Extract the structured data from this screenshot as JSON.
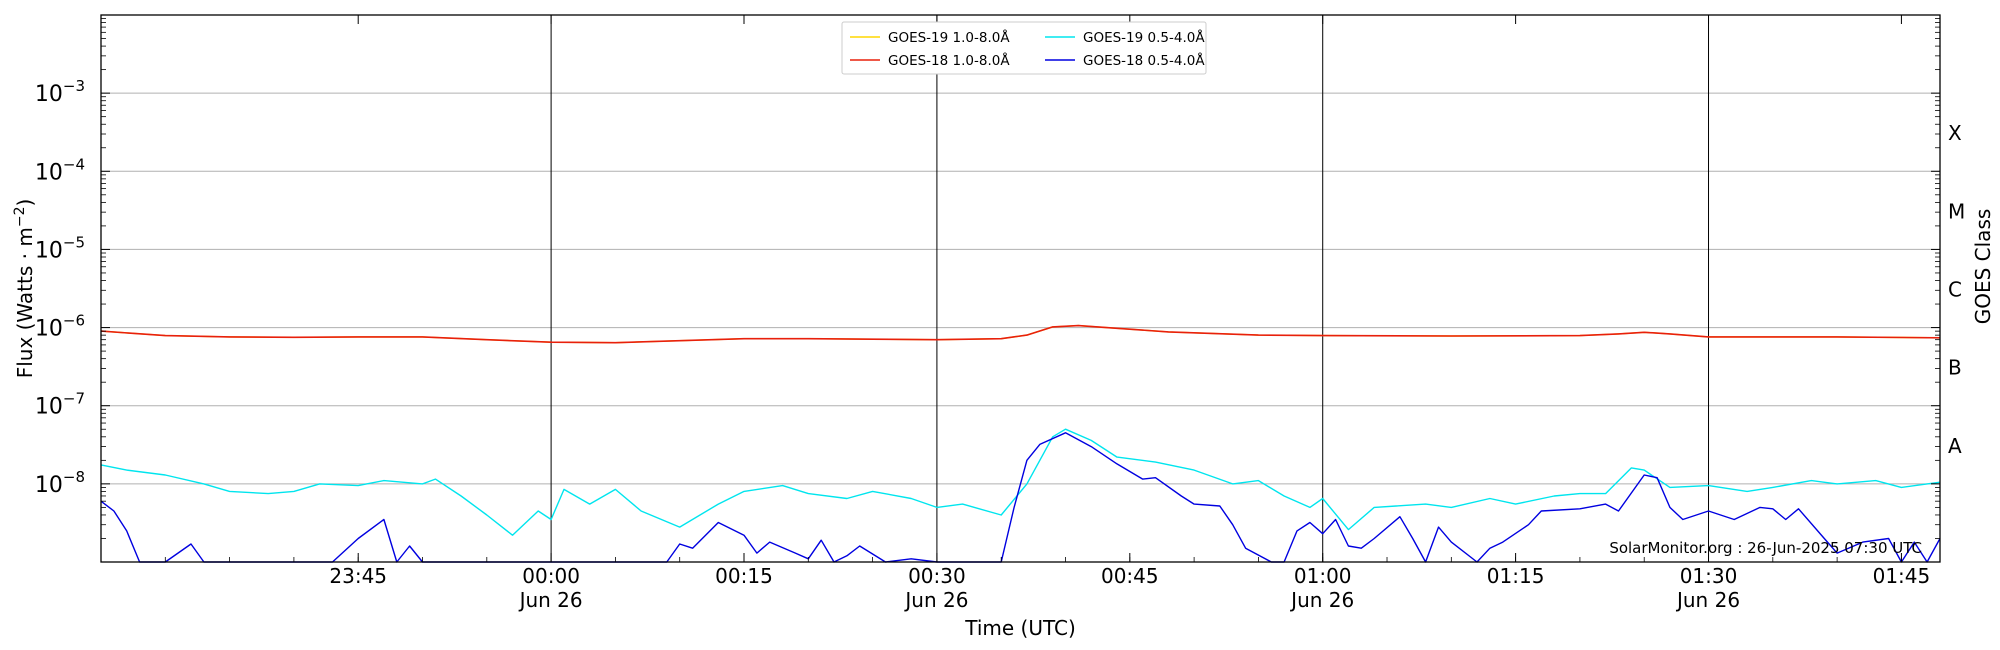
{
  "chart_data": {
    "type": "line",
    "xlabel": "Time (UTC)",
    "ylabel_main": "Flux (Watts",
    "ylabel_unit": "m",
    "ylabel_exp": "−2",
    "right_label": "GOES Class",
    "ylim": [
      1e-09,
      0.01
    ],
    "y_scale": "log",
    "x_start": "2025-06-25T23:25",
    "x_end": "2025-06-26T01:48",
    "grid": "horizontal",
    "legend": "top-center",
    "ytick_base": "10",
    "yticks": [
      {
        "exp": "−3",
        "value": 0.001
      },
      {
        "exp": "−4",
        "value": 0.0001
      },
      {
        "exp": "−5",
        "value": 1e-05
      },
      {
        "exp": "−6",
        "value": 1e-06
      },
      {
        "exp": "−7",
        "value": 1e-07
      },
      {
        "exp": "−8",
        "value": 1e-08
      }
    ],
    "xticks": [
      {
        "time": "2025-06-25T23:45",
        "label": "23:45",
        "sub": ""
      },
      {
        "time": "2025-06-26T00:00",
        "label": "00:00",
        "sub": "Jun 26"
      },
      {
        "time": "2025-06-26T00:15",
        "label": "00:15",
        "sub": ""
      },
      {
        "time": "2025-06-26T00:30",
        "label": "00:30",
        "sub": "Jun 26"
      },
      {
        "time": "2025-06-26T00:45",
        "label": "00:45",
        "sub": ""
      },
      {
        "time": "2025-06-26T01:00",
        "label": "01:00",
        "sub": "Jun 26"
      },
      {
        "time": "2025-06-26T01:15",
        "label": "01:15",
        "sub": ""
      },
      {
        "time": "2025-06-26T01:30",
        "label": "01:30",
        "sub": "Jun 26"
      },
      {
        "time": "2025-06-26T01:45",
        "label": "01:45",
        "sub": ""
      }
    ],
    "vlines": [
      "2025-06-26T00:00",
      "2025-06-26T00:30",
      "2025-06-26T01:00",
      "2025-06-26T01:30"
    ],
    "goes_classes": [
      {
        "label": "X",
        "value": 0.000316
      },
      {
        "label": "M",
        "value": 3.16e-05
      },
      {
        "label": "C",
        "value": 3.16e-06
      },
      {
        "label": "B",
        "value": 3.16e-07
      },
      {
        "label": "A",
        "value": 3.16e-08
      }
    ],
    "annotation": "SolarMonitor.org : 26-Jun-2025 07:30 UTC",
    "series": [
      {
        "name": "GOES-19 1.0-8.0Å",
        "color": "#ffd700",
        "visible": true,
        "points": [
          [
            "2025-06-25T23:25",
            9e-07
          ],
          [
            "2025-06-25T23:30",
            7.9e-07
          ],
          [
            "2025-06-25T23:35",
            7.6e-07
          ],
          [
            "2025-06-25T23:40",
            7.5e-07
          ],
          [
            "2025-06-25T23:45",
            7.6e-07
          ],
          [
            "2025-06-25T23:50",
            7.6e-07
          ],
          [
            "2025-06-25T23:55",
            7e-07
          ],
          [
            "2025-06-26T00:00",
            6.5e-07
          ],
          [
            "2025-06-26T00:05",
            6.4e-07
          ],
          [
            "2025-06-26T00:10",
            6.8e-07
          ],
          [
            "2025-06-26T00:15",
            7.2e-07
          ],
          [
            "2025-06-26T00:20",
            7.2e-07
          ],
          [
            "2025-06-26T00:25",
            7.1e-07
          ],
          [
            "2025-06-26T00:30",
            7e-07
          ],
          [
            "2025-06-26T00:35",
            7.2e-07
          ],
          [
            "2025-06-26T00:37",
            8e-07
          ],
          [
            "2025-06-26T00:39",
            1.02e-06
          ],
          [
            "2025-06-26T00:41",
            1.06e-06
          ],
          [
            "2025-06-26T00:44",
            9.8e-07
          ],
          [
            "2025-06-26T00:48",
            8.8e-07
          ],
          [
            "2025-06-26T00:55",
            8e-07
          ],
          [
            "2025-06-26T01:00",
            7.9e-07
          ],
          [
            "2025-06-26T01:10",
            7.8e-07
          ],
          [
            "2025-06-26T01:20",
            7.9e-07
          ],
          [
            "2025-06-26T01:23",
            8.3e-07
          ],
          [
            "2025-06-26T01:25",
            8.7e-07
          ],
          [
            "2025-06-26T01:27",
            8.3e-07
          ],
          [
            "2025-06-26T01:30",
            7.6e-07
          ],
          [
            "2025-06-26T01:40",
            7.6e-07
          ],
          [
            "2025-06-26T01:48",
            7.4e-07
          ]
        ]
      },
      {
        "name": "GOES-18 1.0-8.0Å",
        "color": "#e8200c",
        "visible": true,
        "points": [
          [
            "2025-06-25T23:25",
            9e-07
          ],
          [
            "2025-06-25T23:30",
            7.9e-07
          ],
          [
            "2025-06-25T23:35",
            7.6e-07
          ],
          [
            "2025-06-25T23:40",
            7.5e-07
          ],
          [
            "2025-06-25T23:45",
            7.6e-07
          ],
          [
            "2025-06-25T23:50",
            7.6e-07
          ],
          [
            "2025-06-25T23:55",
            7e-07
          ],
          [
            "2025-06-26T00:00",
            6.5e-07
          ],
          [
            "2025-06-26T00:05",
            6.4e-07
          ],
          [
            "2025-06-26T00:10",
            6.8e-07
          ],
          [
            "2025-06-26T00:15",
            7.2e-07
          ],
          [
            "2025-06-26T00:20",
            7.2e-07
          ],
          [
            "2025-06-26T00:25",
            7.1e-07
          ],
          [
            "2025-06-26T00:30",
            7e-07
          ],
          [
            "2025-06-26T00:35",
            7.2e-07
          ],
          [
            "2025-06-26T00:37",
            8e-07
          ],
          [
            "2025-06-26T00:39",
            1.02e-06
          ],
          [
            "2025-06-26T00:41",
            1.06e-06
          ],
          [
            "2025-06-26T00:44",
            9.8e-07
          ],
          [
            "2025-06-26T00:48",
            8.8e-07
          ],
          [
            "2025-06-26T00:55",
            8e-07
          ],
          [
            "2025-06-26T01:00",
            7.9e-07
          ],
          [
            "2025-06-26T01:10",
            7.8e-07
          ],
          [
            "2025-06-26T01:20",
            7.9e-07
          ],
          [
            "2025-06-26T01:23",
            8.3e-07
          ],
          [
            "2025-06-26T01:25",
            8.7e-07
          ],
          [
            "2025-06-26T01:27",
            8.3e-07
          ],
          [
            "2025-06-26T01:30",
            7.6e-07
          ],
          [
            "2025-06-26T01:40",
            7.6e-07
          ],
          [
            "2025-06-26T01:48",
            7.4e-07
          ]
        ]
      },
      {
        "name": "GOES-19 0.5-4.0Å",
        "color": "#00e5ee",
        "visible": true,
        "points": [
          [
            "2025-06-25T23:25",
            1.75e-08
          ],
          [
            "2025-06-25T23:27",
            1.5e-08
          ],
          [
            "2025-06-25T23:30",
            1.3e-08
          ],
          [
            "2025-06-25T23:33",
            1e-08
          ],
          [
            "2025-06-25T23:35",
            8e-09
          ],
          [
            "2025-06-25T23:38",
            7.5e-09
          ],
          [
            "2025-06-25T23:40",
            8e-09
          ],
          [
            "2025-06-25T23:42",
            1e-08
          ],
          [
            "2025-06-25T23:45",
            9.5e-09
          ],
          [
            "2025-06-25T23:47",
            1.1e-08
          ],
          [
            "2025-06-25T23:50",
            1e-08
          ],
          [
            "2025-06-25T23:51",
            1.15e-08
          ],
          [
            "2025-06-25T23:53",
            7e-09
          ],
          [
            "2025-06-25T23:55",
            4e-09
          ],
          [
            "2025-06-25T23:57",
            2.2e-09
          ],
          [
            "2025-06-25T23:59",
            4.5e-09
          ],
          [
            "2025-06-26T00:00",
            3.5e-09
          ],
          [
            "2025-06-26T00:01",
            8.5e-09
          ],
          [
            "2025-06-26T00:03",
            5.5e-09
          ],
          [
            "2025-06-26T00:05",
            8.5e-09
          ],
          [
            "2025-06-26T00:07",
            4.5e-09
          ],
          [
            "2025-06-26T00:10",
            2.8e-09
          ],
          [
            "2025-06-26T00:13",
            5.5e-09
          ],
          [
            "2025-06-26T00:15",
            8e-09
          ],
          [
            "2025-06-26T00:18",
            9.5e-09
          ],
          [
            "2025-06-26T00:20",
            7.5e-09
          ],
          [
            "2025-06-26T00:23",
            6.5e-09
          ],
          [
            "2025-06-26T00:25",
            8e-09
          ],
          [
            "2025-06-26T00:28",
            6.5e-09
          ],
          [
            "2025-06-26T00:30",
            5e-09
          ],
          [
            "2025-06-26T00:32",
            5.5e-09
          ],
          [
            "2025-06-26T00:35",
            4e-09
          ],
          [
            "2025-06-26T00:37",
            1e-08
          ],
          [
            "2025-06-26T00:39",
            4e-08
          ],
          [
            "2025-06-26T00:40",
            5e-08
          ],
          [
            "2025-06-26T00:42",
            3.6e-08
          ],
          [
            "2025-06-26T00:44",
            2.2e-08
          ],
          [
            "2025-06-26T00:47",
            1.9e-08
          ],
          [
            "2025-06-26T00:50",
            1.5e-08
          ],
          [
            "2025-06-26T00:53",
            1e-08
          ],
          [
            "2025-06-26T00:55",
            1.1e-08
          ],
          [
            "2025-06-26T00:57",
            7e-09
          ],
          [
            "2025-06-26T00:59",
            5e-09
          ],
          [
            "2025-06-26T01:00",
            6.5e-09
          ],
          [
            "2025-06-26T01:02",
            2.6e-09
          ],
          [
            "2025-06-26T01:04",
            5e-09
          ],
          [
            "2025-06-26T01:08",
            5.5e-09
          ],
          [
            "2025-06-26T01:10",
            5e-09
          ],
          [
            "2025-06-26T01:13",
            6.5e-09
          ],
          [
            "2025-06-26T01:15",
            5.5e-09
          ],
          [
            "2025-06-26T01:18",
            7e-09
          ],
          [
            "2025-06-26T01:20",
            7.5e-09
          ],
          [
            "2025-06-26T01:22",
            7.5e-09
          ],
          [
            "2025-06-26T01:24",
            1.6e-08
          ],
          [
            "2025-06-26T01:25",
            1.5e-08
          ],
          [
            "2025-06-26T01:27",
            9e-09
          ],
          [
            "2025-06-26T01:30",
            9.5e-09
          ],
          [
            "2025-06-26T01:33",
            8e-09
          ],
          [
            "2025-06-26T01:35",
            9e-09
          ],
          [
            "2025-06-26T01:38",
            1.1e-08
          ],
          [
            "2025-06-26T01:40",
            1e-08
          ],
          [
            "2025-06-26T01:43",
            1.1e-08
          ],
          [
            "2025-06-26T01:45",
            9e-09
          ],
          [
            "2025-06-26T01:48",
            1.05e-08
          ]
        ]
      },
      {
        "name": "GOES-18 0.5-4.0Å",
        "color": "#0000e0",
        "visible": true,
        "points": [
          [
            "2025-06-25T23:25",
            6e-09
          ],
          [
            "2025-06-25T23:26",
            4.5e-09
          ],
          [
            "2025-06-25T23:27",
            2.5e-09
          ],
          [
            "2025-06-25T23:28",
            1e-09
          ],
          [
            "2025-06-25T23:30",
            1e-09
          ],
          [
            "2025-06-25T23:32",
            1.7e-09
          ],
          [
            "2025-06-25T23:33",
            1e-09
          ],
          [
            "2025-06-25T23:43",
            1e-09
          ],
          [
            "2025-06-25T23:45",
            2e-09
          ],
          [
            "2025-06-25T23:47",
            3.5e-09
          ],
          [
            "2025-06-25T23:48",
            1e-09
          ],
          [
            "2025-06-25T23:49",
            1.6e-09
          ],
          [
            "2025-06-25T23:50",
            1e-09
          ],
          [
            "2025-06-26T00:09",
            1e-09
          ],
          [
            "2025-06-26T00:10",
            1.7e-09
          ],
          [
            "2025-06-26T00:11",
            1.5e-09
          ],
          [
            "2025-06-26T00:13",
            3.2e-09
          ],
          [
            "2025-06-26T00:15",
            2.2e-09
          ],
          [
            "2025-06-26T00:16",
            1.3e-09
          ],
          [
            "2025-06-26T00:17",
            1.8e-09
          ],
          [
            "2025-06-26T00:19",
            1.3e-09
          ],
          [
            "2025-06-26T00:20",
            1.1e-09
          ],
          [
            "2025-06-26T00:21",
            1.9e-09
          ],
          [
            "2025-06-26T00:22",
            1e-09
          ],
          [
            "2025-06-26T00:23",
            1.2e-09
          ],
          [
            "2025-06-26T00:24",
            1.6e-09
          ],
          [
            "2025-06-26T00:26",
            1e-09
          ],
          [
            "2025-06-26T00:28",
            1.1e-09
          ],
          [
            "2025-06-26T00:30",
            1e-09
          ],
          [
            "2025-06-26T00:35",
            1e-09
          ],
          [
            "2025-06-26T00:36",
            5e-09
          ],
          [
            "2025-06-26T00:37",
            2e-08
          ],
          [
            "2025-06-26T00:38",
            3.2e-08
          ],
          [
            "2025-06-26T00:40",
            4.5e-08
          ],
          [
            "2025-06-26T00:42",
            3e-08
          ],
          [
            "2025-06-26T00:44",
            1.8e-08
          ],
          [
            "2025-06-26T00:46",
            1.15e-08
          ],
          [
            "2025-06-26T00:47",
            1.2e-08
          ],
          [
            "2025-06-26T00:49",
            7e-09
          ],
          [
            "2025-06-26T00:50",
            5.5e-09
          ],
          [
            "2025-06-26T00:52",
            5.2e-09
          ],
          [
            "2025-06-26T00:53",
            3e-09
          ],
          [
            "2025-06-26T00:54",
            1.5e-09
          ],
          [
            "2025-06-26T00:56",
            1e-09
          ],
          [
            "2025-06-26T00:57",
            1e-09
          ],
          [
            "2025-06-26T00:58",
            2.5e-09
          ],
          [
            "2025-06-26T00:59",
            3.2e-09
          ],
          [
            "2025-06-26T01:00",
            2.3e-09
          ],
          [
            "2025-06-26T01:01",
            3.5e-09
          ],
          [
            "2025-06-26T01:02",
            1.6e-09
          ],
          [
            "2025-06-26T01:03",
            1.5e-09
          ],
          [
            "2025-06-26T01:04",
            2e-09
          ],
          [
            "2025-06-26T01:06",
            3.8e-09
          ],
          [
            "2025-06-26T01:07",
            2e-09
          ],
          [
            "2025-06-26T01:08",
            1e-09
          ],
          [
            "2025-06-26T01:09",
            2.8e-09
          ],
          [
            "2025-06-26T01:10",
            1.8e-09
          ],
          [
            "2025-06-26T01:12",
            1e-09
          ],
          [
            "2025-06-26T01:13",
            1.5e-09
          ],
          [
            "2025-06-26T01:14",
            1.8e-09
          ],
          [
            "2025-06-26T01:16",
            3e-09
          ],
          [
            "2025-06-26T01:17",
            4.5e-09
          ],
          [
            "2025-06-26T01:20",
            4.8e-09
          ],
          [
            "2025-06-26T01:22",
            5.5e-09
          ],
          [
            "2025-06-26T01:23",
            4.5e-09
          ],
          [
            "2025-06-26T01:25",
            1.3e-08
          ],
          [
            "2025-06-26T01:26",
            1.2e-08
          ],
          [
            "2025-06-26T01:27",
            5e-09
          ],
          [
            "2025-06-26T01:28",
            3.5e-09
          ],
          [
            "2025-06-26T01:30",
            4.5e-09
          ],
          [
            "2025-06-26T01:32",
            3.5e-09
          ],
          [
            "2025-06-26T01:34",
            5e-09
          ],
          [
            "2025-06-26T01:35",
            4.8e-09
          ],
          [
            "2025-06-26T01:36",
            3.5e-09
          ],
          [
            "2025-06-26T01:37",
            4.8e-09
          ],
          [
            "2025-06-26T01:39",
            2e-09
          ],
          [
            "2025-06-26T01:40",
            1.3e-09
          ],
          [
            "2025-06-26T01:42",
            1.8e-09
          ],
          [
            "2025-06-26T01:44",
            2e-09
          ],
          [
            "2025-06-26T01:45",
            1e-09
          ],
          [
            "2025-06-26T01:46",
            1.8e-09
          ],
          [
            "2025-06-26T01:47",
            1e-09
          ],
          [
            "2025-06-26T01:48",
            2e-09
          ]
        ]
      }
    ]
  }
}
